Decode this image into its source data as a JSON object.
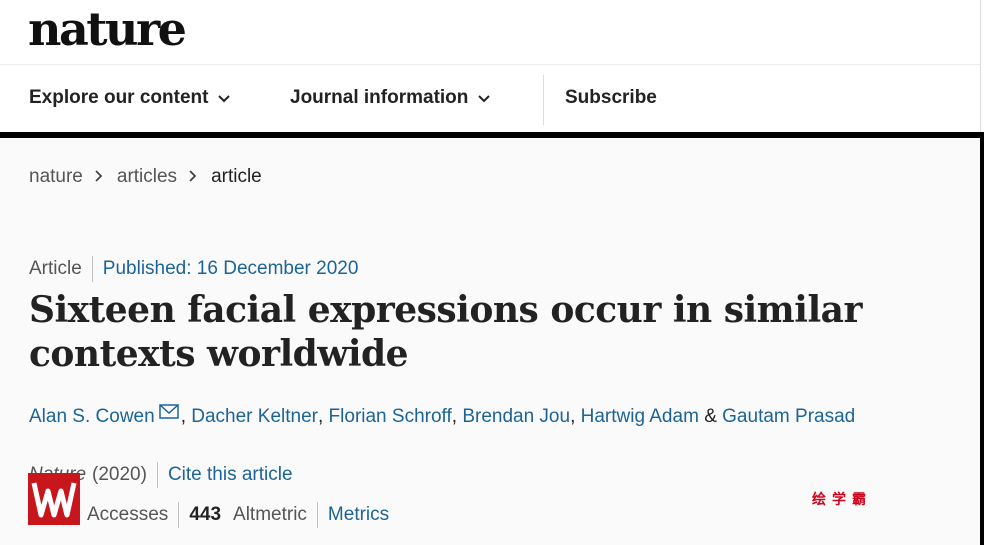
{
  "header": {
    "logo_text": "nature"
  },
  "nav": {
    "items": [
      {
        "label": "Explore our content"
      },
      {
        "label": "Journal information"
      },
      {
        "label": "Subscribe"
      }
    ]
  },
  "breadcrumb": [
    "nature",
    "articles",
    "article"
  ],
  "article": {
    "type": "Article",
    "published": "Published: 16 December 2020",
    "title": "Sixteen facial expressions occur in similar contexts worldwide",
    "authors": [
      "Alan S. Cowen",
      "Dacher Keltner",
      "Florian Schroff",
      "Brendan Jou",
      "Hartwig Adam",
      "Gautam Prasad"
    ],
    "author_separator": ",",
    "author_ampersand": "&",
    "journal": "Nature",
    "year": "(2020)",
    "cite_label": "Cite this article",
    "accesses_label": "Accesses",
    "altmetric_value": "443",
    "altmetric_label": "Altmetric",
    "metrics_label": "Metrics"
  },
  "watermark": {
    "text": "绘学霸"
  },
  "colors": {
    "link": "#1c6497",
    "watermark_red": "#c8161d",
    "rule": "#000000"
  }
}
